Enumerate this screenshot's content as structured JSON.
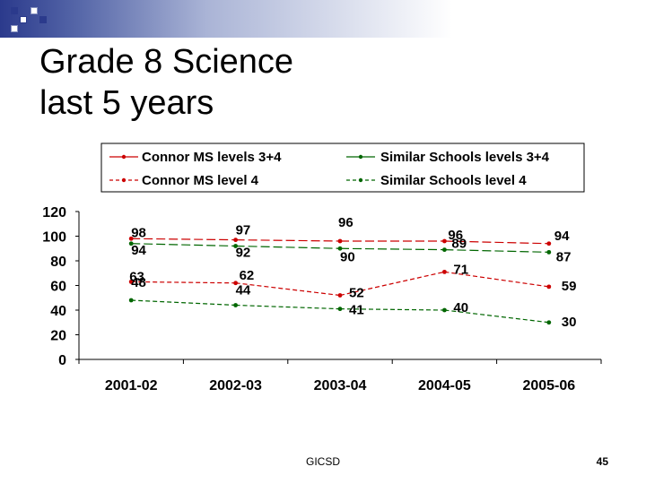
{
  "slide": {
    "title_line1": "Grade 8 Science",
    "title_line2": "last 5 years",
    "footer": "GICSD",
    "page_number": "45"
  },
  "colors": {
    "band_dark": "#2b3a8c",
    "band_light": "#aab4d6",
    "red": "#cc0000",
    "green": "#006600"
  },
  "chart_data": {
    "type": "line",
    "categories": [
      "2001-02",
      "2002-03",
      "2003-04",
      "2004-05",
      "2005-06"
    ],
    "ylim": [
      0,
      120
    ],
    "yticks": [
      0,
      20,
      40,
      60,
      80,
      100,
      120
    ],
    "grid": false,
    "legend_position": "top",
    "series": [
      {
        "name": "Connor MS levels 3+4",
        "values": [
          98,
          97,
          96,
          96,
          94
        ],
        "color": "#cc0000",
        "dashed": false
      },
      {
        "name": "Similar Schools levels 3+4",
        "values": [
          94,
          92,
          90,
          89,
          87
        ],
        "color": "#006600",
        "dashed": false
      },
      {
        "name": "Connor MS level 4",
        "values": [
          63,
          62,
          52,
          71,
          59
        ],
        "color": "#cc0000",
        "dashed": true
      },
      {
        "name": "Similar Schools level 4",
        "values": [
          48,
          44,
          41,
          40,
          30
        ],
        "color": "#006600",
        "dashed": true
      }
    ]
  }
}
